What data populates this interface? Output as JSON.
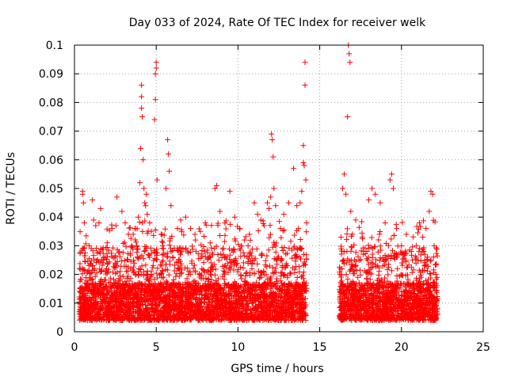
{
  "chart_data": {
    "type": "scatter",
    "title": "Day 033 of 2024, Rate Of TEC Index for receiver welk",
    "xlabel": "GPS time / hours",
    "ylabel": "ROTI / TECUs",
    "xlim": [
      0,
      25
    ],
    "ylim": [
      0,
      0.1
    ],
    "x_ticks": [
      0,
      5,
      10,
      15,
      20,
      25
    ],
    "x_tick_labels": [
      "0",
      "5",
      "10",
      "15",
      "20",
      "25"
    ],
    "y_ticks": [
      0,
      0.01,
      0.02,
      0.03,
      0.04,
      0.05,
      0.06,
      0.07,
      0.08,
      0.09,
      0.1
    ],
    "y_tick_labels": [
      "0",
      "0.01",
      "0.02",
      "0.03",
      "0.04",
      "0.05",
      "0.06",
      "0.07",
      "0.08",
      "0.09",
      "0.1"
    ],
    "grid": true,
    "grid_style": "dotted",
    "marker": "+",
    "marker_color": "#ff0000",
    "data_gaps_hours": [
      [
        14.2,
        16.2
      ]
    ],
    "series": [
      {
        "x": [
          0.5,
          0.5,
          0.55,
          0.6,
          0.9,
          1.1,
          1.3,
          1.6,
          2.0,
          2.3,
          2.6,
          2.9,
          3.1,
          3.3,
          3.5,
          3.7,
          3.9,
          4.0,
          4.05,
          4.1,
          4.1,
          4.1,
          4.15,
          4.2,
          4.25,
          4.3,
          4.35,
          4.4,
          4.45,
          4.6,
          4.7,
          4.9,
          4.95,
          4.95,
          5.0,
          5.0,
          5.05,
          5.3,
          5.6,
          5.7,
          5.75,
          5.8,
          5.9,
          6.3,
          6.5,
          6.8,
          7.1,
          7.4,
          7.7,
          8.0,
          8.3,
          8.6,
          8.7,
          8.9,
          9.2,
          9.5,
          9.8,
          10.1,
          10.4,
          10.7,
          11.0,
          11.2,
          11.4,
          11.6,
          11.8,
          11.9,
          12.0,
          12.05,
          12.1,
          12.15,
          12.2,
          12.3,
          12.6,
          12.8,
          13.1,
          13.4,
          13.6,
          13.7,
          13.8,
          13.9,
          14.0,
          14.0,
          14.05,
          14.1,
          14.1,
          14.15,
          14.2,
          16.3,
          16.4,
          16.5,
          16.6,
          16.7,
          16.75,
          16.8,
          16.85,
          16.9,
          17.0,
          17.2,
          17.6,
          18.0,
          18.2,
          18.4,
          18.7,
          19.0,
          19.3,
          19.4,
          19.5,
          19.7,
          20.0,
          20.3,
          20.6,
          20.9,
          21.1,
          21.3,
          21.5,
          21.7,
          21.8,
          21.9,
          22.0,
          22.1
        ],
        "y": [
          0.049,
          0.048,
          0.045,
          0.038,
          0.03,
          0.046,
          0.037,
          0.043,
          0.031,
          0.036,
          0.047,
          0.042,
          0.038,
          0.034,
          0.03,
          0.036,
          0.04,
          0.052,
          0.064,
          0.086,
          0.082,
          0.078,
          0.075,
          0.06,
          0.05,
          0.045,
          0.044,
          0.048,
          0.041,
          0.038,
          0.035,
          0.074,
          0.081,
          0.09,
          0.094,
          0.092,
          0.053,
          0.034,
          0.05,
          0.067,
          0.062,
          0.056,
          0.044,
          0.036,
          0.039,
          0.04,
          0.036,
          0.032,
          0.035,
          0.038,
          0.031,
          0.05,
          0.051,
          0.042,
          0.038,
          0.049,
          0.04,
          0.036,
          0.032,
          0.034,
          0.045,
          0.041,
          0.039,
          0.037,
          0.045,
          0.043,
          0.047,
          0.069,
          0.067,
          0.061,
          0.05,
          0.044,
          0.036,
          0.041,
          0.045,
          0.057,
          0.044,
          0.036,
          0.045,
          0.049,
          0.059,
          0.065,
          0.058,
          0.086,
          0.094,
          0.053,
          0.038,
          0.033,
          0.05,
          0.055,
          0.048,
          0.075,
          0.1,
          0.097,
          0.094,
          0.042,
          0.034,
          0.039,
          0.033,
          0.046,
          0.05,
          0.048,
          0.045,
          0.038,
          0.053,
          0.055,
          0.05,
          0.036,
          0.03,
          0.034,
          0.028,
          0.03,
          0.038,
          0.033,
          0.036,
          0.042,
          0.049,
          0.048,
          0.03,
          0.02
        ]
      }
    ],
    "dense_band": {
      "segments": [
        [
          0.3,
          14.2
        ],
        [
          16.2,
          22.2
        ]
      ],
      "typical_range": [
        0.004,
        0.025
      ],
      "median": 0.011
    }
  }
}
